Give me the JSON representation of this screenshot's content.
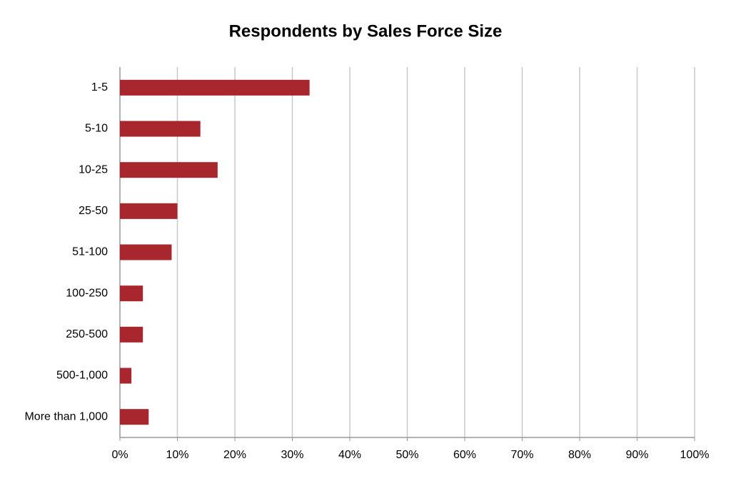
{
  "chart_data": {
    "type": "hbar",
    "title": "Respondents by Sales Force Size",
    "categories": [
      "1-5",
      "5-10",
      "10-25",
      "25-50",
      "51-100",
      "100-250",
      "250-500",
      "500-1,000",
      "More than 1,000"
    ],
    "values": [
      33,
      14,
      17,
      10,
      9,
      4,
      4,
      2,
      5
    ],
    "color": "#a8262d",
    "xlim": [
      0,
      100
    ],
    "xticks": [
      {
        "value": 0,
        "label": "0%"
      },
      {
        "value": 10,
        "label": "10%"
      },
      {
        "value": 20,
        "label": "20%"
      },
      {
        "value": 30,
        "label": "30%"
      },
      {
        "value": 40,
        "label": "40%"
      },
      {
        "value": 50,
        "label": "50%"
      },
      {
        "value": 60,
        "label": "60%"
      },
      {
        "value": 70,
        "label": "70%"
      },
      {
        "value": 80,
        "label": "80%"
      },
      {
        "value": 90,
        "label": "90%"
      },
      {
        "value": 100,
        "label": "100%"
      }
    ],
    "grid": true
  }
}
